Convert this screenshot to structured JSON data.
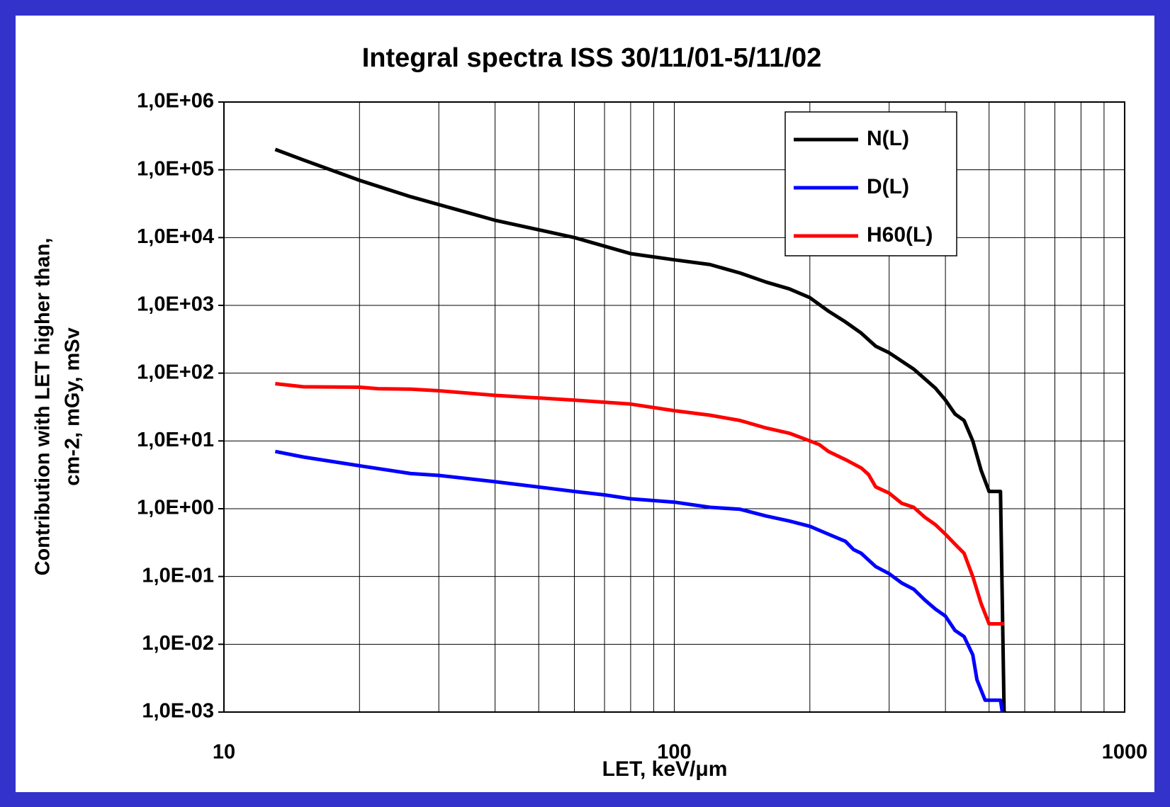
{
  "chart_data": {
    "type": "line",
    "title": "Integral spectra ISS 30/11/01-5/11/02",
    "xlabel": "LET, keV/μm",
    "ylabel": [
      "Contribution with LET higher than,",
      "cm-2, mGy, mSv"
    ],
    "xscale": "log",
    "yscale": "log",
    "grid": true,
    "legend": "upper right",
    "xlim": [
      10,
      1000
    ],
    "xticks": [
      10,
      100,
      1000
    ],
    "xminorticks": [
      20,
      30,
      40,
      50,
      60,
      70,
      80,
      90,
      200,
      300,
      400,
      500,
      600,
      700,
      800,
      900
    ],
    "ylim": [
      0.001,
      1000000
    ],
    "yticks": [
      {
        "value": 0.001,
        "label": "1,0E-03"
      },
      {
        "value": 0.01,
        "label": "1,0E-02"
      },
      {
        "value": 0.1,
        "label": "1,0E-01"
      },
      {
        "value": 1,
        "label": "1,0E+00"
      },
      {
        "value": 10,
        "label": "1,0E+01"
      },
      {
        "value": 100,
        "label": "1,0E+02"
      },
      {
        "value": 1000,
        "label": "1,0E+03"
      },
      {
        "value": 10000,
        "label": "1,0E+04"
      },
      {
        "value": 100000,
        "label": "1,0E+05"
      },
      {
        "value": 1000000,
        "label": "1,0E+06"
      }
    ],
    "series": [
      {
        "name": "N(L)",
        "color": "#000000",
        "x": [
          13,
          15,
          20,
          26,
          40,
          60,
          80,
          100,
          120,
          140,
          160,
          180,
          200,
          220,
          240,
          260,
          280,
          300,
          340,
          380,
          400,
          420,
          440,
          460,
          480,
          500,
          530,
          540
        ],
        "values": [
          200000,
          140000,
          70000,
          40000,
          18000,
          10000,
          5800,
          4700,
          4000,
          3000,
          2200,
          1750,
          1300,
          820,
          570,
          390,
          250,
          200,
          115,
          60,
          40,
          25,
          20,
          10,
          3.7,
          1.8,
          1.8,
          0.001
        ]
      },
      {
        "name": "D(L)",
        "color": "#0000ff",
        "x": [
          13,
          15,
          20,
          26,
          30,
          40,
          60,
          70,
          80,
          100,
          120,
          140,
          160,
          180,
          200,
          220,
          240,
          250,
          260,
          280,
          300,
          320,
          340,
          360,
          380,
          400,
          420,
          440,
          460,
          470,
          490,
          530,
          535
        ],
        "values": [
          7,
          5.8,
          4.3,
          3.3,
          3.1,
          2.5,
          1.8,
          1.6,
          1.4,
          1.25,
          1.05,
          0.98,
          0.78,
          0.66,
          0.55,
          0.42,
          0.33,
          0.25,
          0.22,
          0.14,
          0.11,
          0.08,
          0.065,
          0.045,
          0.033,
          0.026,
          0.016,
          0.013,
          0.007,
          0.003,
          0.0015,
          0.0015,
          0.001
        ]
      },
      {
        "name": "H60(L)",
        "color": "#ff0000",
        "x": [
          13,
          15,
          20,
          22,
          26,
          30,
          40,
          60,
          80,
          100,
          120,
          140,
          160,
          180,
          200,
          210,
          220,
          240,
          260,
          270,
          280,
          300,
          320,
          340,
          360,
          380,
          400,
          420,
          440,
          460,
          480,
          500,
          540
        ],
        "values": [
          70,
          63,
          62,
          59,
          58,
          55,
          47,
          40,
          35,
          28,
          24,
          20,
          15.5,
          13,
          10,
          8.8,
          7,
          5.3,
          4,
          3.2,
          2.1,
          1.7,
          1.2,
          1.05,
          0.75,
          0.58,
          0.42,
          0.3,
          0.22,
          0.1,
          0.04,
          0.02,
          0.02
        ]
      }
    ]
  }
}
